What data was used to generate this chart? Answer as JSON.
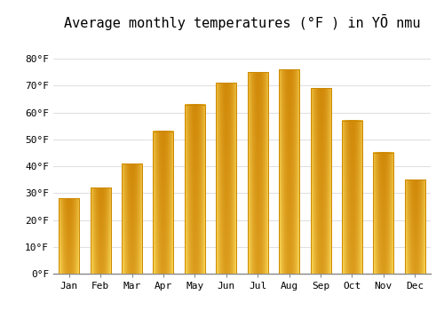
{
  "title": "Average monthly temperatures (°F ) in YŌ nmu",
  "months": [
    "Jan",
    "Feb",
    "Mar",
    "Apr",
    "May",
    "Jun",
    "Jul",
    "Aug",
    "Sep",
    "Oct",
    "Nov",
    "Dec"
  ],
  "values": [
    28,
    32,
    41,
    53,
    63,
    71,
    75,
    76,
    69,
    57,
    45,
    35
  ],
  "bar_color_main": "#FFA500",
  "bar_color_light": "#FFD060",
  "bar_edge_color": "#CC8800",
  "ylim": [
    0,
    88
  ],
  "yticks": [
    0,
    10,
    20,
    30,
    40,
    50,
    60,
    70,
    80
  ],
  "ytick_labels": [
    "0°F",
    "10°F",
    "20°F",
    "30°F",
    "40°F",
    "50°F",
    "60°F",
    "70°F",
    "80°F"
  ],
  "title_fontsize": 11,
  "tick_fontsize": 8,
  "background_color": "#ffffff",
  "grid_color": "#e0e0e0",
  "bar_width": 0.65
}
